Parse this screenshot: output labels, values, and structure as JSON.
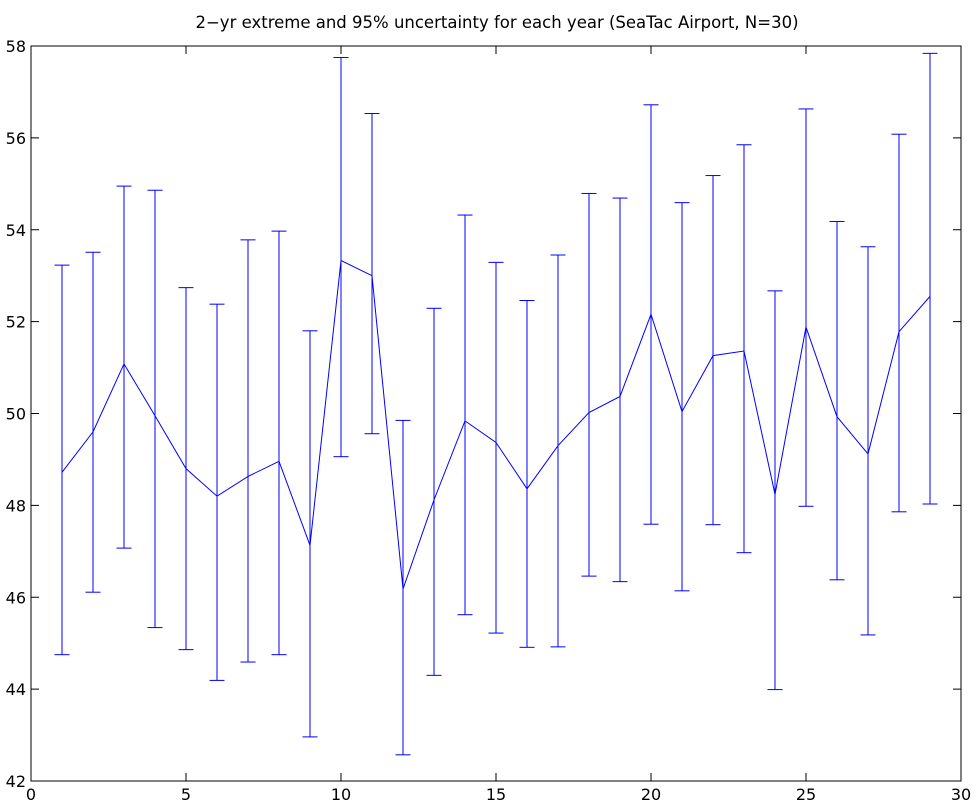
{
  "chart_data": {
    "type": "line",
    "title": "2−yr extreme and 95% uncertainty for each year (SeaTac Airport, N=30)",
    "xlabel": "",
    "ylabel": "",
    "xlim": [
      0,
      30
    ],
    "ylim": [
      42,
      58
    ],
    "xticks": [
      0,
      5,
      10,
      15,
      20,
      25,
      30
    ],
    "yticks": [
      42,
      44,
      46,
      48,
      50,
      52,
      54,
      56,
      58
    ],
    "grid": false,
    "legend": "none",
    "series": [
      {
        "color": "#0000ff",
        "x": [
          1,
          2,
          3,
          4,
          5,
          6,
          7,
          8,
          9,
          10,
          11,
          12,
          13,
          14,
          15,
          16,
          17,
          18,
          19,
          20,
          21,
          22,
          23,
          24,
          25,
          26,
          27,
          28,
          29
        ],
        "y": [
          48.72,
          49.6,
          51.08,
          49.95,
          48.8,
          48.2,
          48.63,
          48.96,
          47.13,
          53.33,
          53.0,
          46.18,
          48.12,
          49.84,
          49.37,
          48.36,
          49.3,
          50.02,
          50.37,
          52.16,
          50.04,
          51.26,
          51.36,
          48.24,
          51.88,
          49.93,
          49.12,
          51.78,
          52.55
        ],
        "lower": [
          44.75,
          46.11,
          47.07,
          45.34,
          44.86,
          44.19,
          44.59,
          44.75,
          42.96,
          49.06,
          49.56,
          42.57,
          44.3,
          45.62,
          45.22,
          44.91,
          44.92,
          46.46,
          46.34,
          47.59,
          46.14,
          47.58,
          46.97,
          43.99,
          47.98,
          46.38,
          45.18,
          47.86,
          48.03
        ],
        "upper": [
          53.23,
          53.51,
          54.95,
          54.86,
          52.74,
          52.38,
          53.78,
          53.97,
          51.8,
          57.75,
          56.53,
          49.85,
          52.29,
          54.32,
          53.29,
          52.46,
          53.45,
          54.79,
          54.69,
          56.72,
          54.59,
          55.18,
          55.85,
          52.67,
          56.63,
          54.18,
          53.63,
          56.08,
          57.84
        ]
      }
    ]
  }
}
